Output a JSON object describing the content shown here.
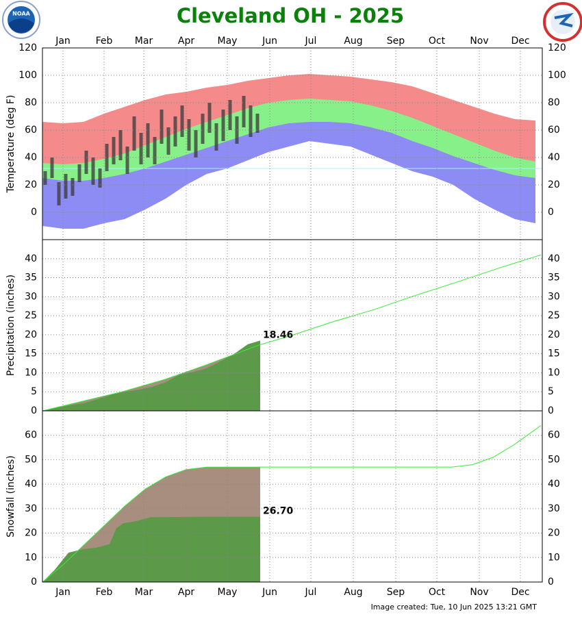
{
  "title": "Cleveland OH - 2025",
  "note": "Image created: Tue, 10 Jun 2025 13:21 GMT",
  "chart_data": [
    {
      "type": "temperature",
      "ylabel": "Temperature (deg F)",
      "xlim": [
        1,
        366
      ],
      "xticks": [
        {
          "value": 16,
          "label": "Jan"
        },
        {
          "value": 46,
          "label": "Feb"
        },
        {
          "value": 75,
          "label": "Mar"
        },
        {
          "value": 106,
          "label": "Apr"
        },
        {
          "value": 136,
          "label": "May"
        },
        {
          "value": 167,
          "label": "Jun"
        },
        {
          "value": 197,
          "label": "Jul"
        },
        {
          "value": 228,
          "label": "Aug"
        },
        {
          "value": 259,
          "label": "Sep"
        },
        {
          "value": 289,
          "label": "Oct"
        },
        {
          "value": 320,
          "label": "Nov"
        },
        {
          "value": 350,
          "label": "Dec"
        }
      ],
      "ylim": [
        -20,
        120
      ],
      "yticks": [
        0,
        20,
        40,
        60,
        80,
        100,
        120
      ],
      "grid": true,
      "freezing_line": 32,
      "x": [
        1,
        16,
        31,
        46,
        61,
        76,
        91,
        106,
        121,
        136,
        151,
        166,
        181,
        196,
        211,
        226,
        241,
        256,
        271,
        286,
        301,
        316,
        331,
        346,
        361
      ],
      "record_high": [
        66,
        65,
        66,
        72,
        77,
        82,
        86,
        88,
        91,
        93,
        96,
        98,
        100,
        101,
        100,
        99,
        97,
        95,
        92,
        87,
        82,
        77,
        72,
        68,
        67
      ],
      "normal_high": [
        36,
        35,
        36,
        39,
        43,
        49,
        55,
        61,
        66,
        71,
        76,
        80,
        82,
        83,
        82,
        81,
        78,
        74,
        69,
        63,
        57,
        51,
        45,
        40,
        37
      ],
      "normal_low": [
        25,
        23,
        23,
        25,
        28,
        32,
        37,
        42,
        47,
        52,
        57,
        62,
        65,
        66,
        66,
        65,
        62,
        58,
        52,
        47,
        41,
        36,
        31,
        27,
        25
      ],
      "record_low": [
        -10,
        -12,
        -12,
        -8,
        -5,
        2,
        10,
        20,
        28,
        32,
        38,
        44,
        48,
        52,
        50,
        48,
        42,
        36,
        30,
        26,
        20,
        10,
        2,
        -5,
        -8
      ],
      "colors": {
        "record": "#f48a8a",
        "normal": "#88f088",
        "low": "#8c8cf4",
        "observed": "#3a3a3a",
        "freezing": "#aaf0ff"
      },
      "observed_x": [
        3,
        8,
        13,
        18,
        23,
        28,
        33,
        38,
        43,
        48,
        53,
        58,
        63,
        68,
        73,
        78,
        83,
        88,
        93,
        98,
        103,
        108,
        113,
        118,
        123,
        128,
        133,
        138,
        143,
        148,
        153,
        158
      ],
      "observed_high": [
        30,
        40,
        22,
        28,
        25,
        35,
        45,
        40,
        32,
        50,
        55,
        60,
        48,
        70,
        58,
        65,
        55,
        75,
        62,
        70,
        78,
        68,
        60,
        72,
        80,
        65,
        75,
        82,
        70,
        85,
        78,
        72
      ],
      "observed_low": [
        20,
        25,
        5,
        10,
        12,
        22,
        28,
        20,
        18,
        30,
        35,
        38,
        28,
        45,
        35,
        40,
        35,
        50,
        42,
        48,
        55,
        45,
        40,
        50,
        58,
        45,
        52,
        60,
        50,
        62,
        55,
        58
      ]
    },
    {
      "type": "cumulative",
      "ylabel": "Precipitation (inches)",
      "xlim": [
        1,
        366
      ],
      "ylim": [
        0,
        45
      ],
      "yticks": [
        0,
        5,
        10,
        15,
        20,
        25,
        30,
        35,
        40
      ],
      "grid": true,
      "colors": {
        "normal_line": "#33ee33",
        "normal_area": "#a88e7e",
        "observed": "#5c9a4a"
      },
      "normal_x": [
        1,
        31,
        59,
        90,
        120,
        151,
        160,
        181,
        212,
        243,
        273,
        304,
        334,
        365
      ],
      "normal": [
        0,
        2.6,
        5,
        8.2,
        12,
        16.2,
        17.4,
        19.6,
        23.3,
        26.6,
        30.3,
        33.9,
        37.5,
        41
      ],
      "observed_x": [
        1,
        11,
        21,
        31,
        41,
        51,
        61,
        71,
        81,
        91,
        101,
        111,
        121,
        131,
        141,
        151,
        160
      ],
      "observed": [
        0,
        0.8,
        1.5,
        2.0,
        3.0,
        4.2,
        5.0,
        5.5,
        6.3,
        7.5,
        9.5,
        10.2,
        11.2,
        13,
        15,
        17.5,
        18.46
      ]
    },
    {
      "type": "cumulative",
      "ylabel": "Snowfall (inches)",
      "xlim": [
        1,
        366
      ],
      "xticks": [
        {
          "value": 16,
          "label": "Jan"
        },
        {
          "value": 46,
          "label": "Feb"
        },
        {
          "value": 75,
          "label": "Mar"
        },
        {
          "value": 106,
          "label": "Apr"
        },
        {
          "value": 136,
          "label": "May"
        },
        {
          "value": 167,
          "label": "Jun"
        },
        {
          "value": 197,
          "label": "Jul"
        },
        {
          "value": 228,
          "label": "Aug"
        },
        {
          "value": 259,
          "label": "Sep"
        },
        {
          "value": 289,
          "label": "Oct"
        },
        {
          "value": 320,
          "label": "Nov"
        },
        {
          "value": 350,
          "label": "Dec"
        }
      ],
      "ylim": [
        0,
        70
      ],
      "yticks": [
        0,
        10,
        20,
        30,
        40,
        50,
        60
      ],
      "grid": true,
      "colors": {
        "normal_line": "#33ee33",
        "normal_area": "#a88e7e",
        "observed": "#5c9a4a"
      },
      "normal_x": [
        1,
        16,
        31,
        46,
        61,
        76,
        91,
        106,
        121,
        160,
        300,
        315,
        330,
        345,
        365
      ],
      "normal": [
        0,
        7,
        15,
        23,
        31,
        38,
        43,
        46,
        47,
        47,
        47,
        48,
        51,
        56,
        64
      ],
      "observed_x": [
        1,
        10,
        20,
        31,
        40,
        50,
        55,
        60,
        70,
        80,
        100,
        120,
        160
      ],
      "observed": [
        0,
        5,
        12,
        13.5,
        14,
        15.5,
        22,
        24,
        25,
        26.5,
        26.6,
        26.7,
        26.7
      ],
      "value_labels": [
        null,
        null,
        null,
        null,
        null,
        null,
        null,
        null,
        null,
        null,
        null,
        null,
        "26.70"
      ]
    }
  ]
}
